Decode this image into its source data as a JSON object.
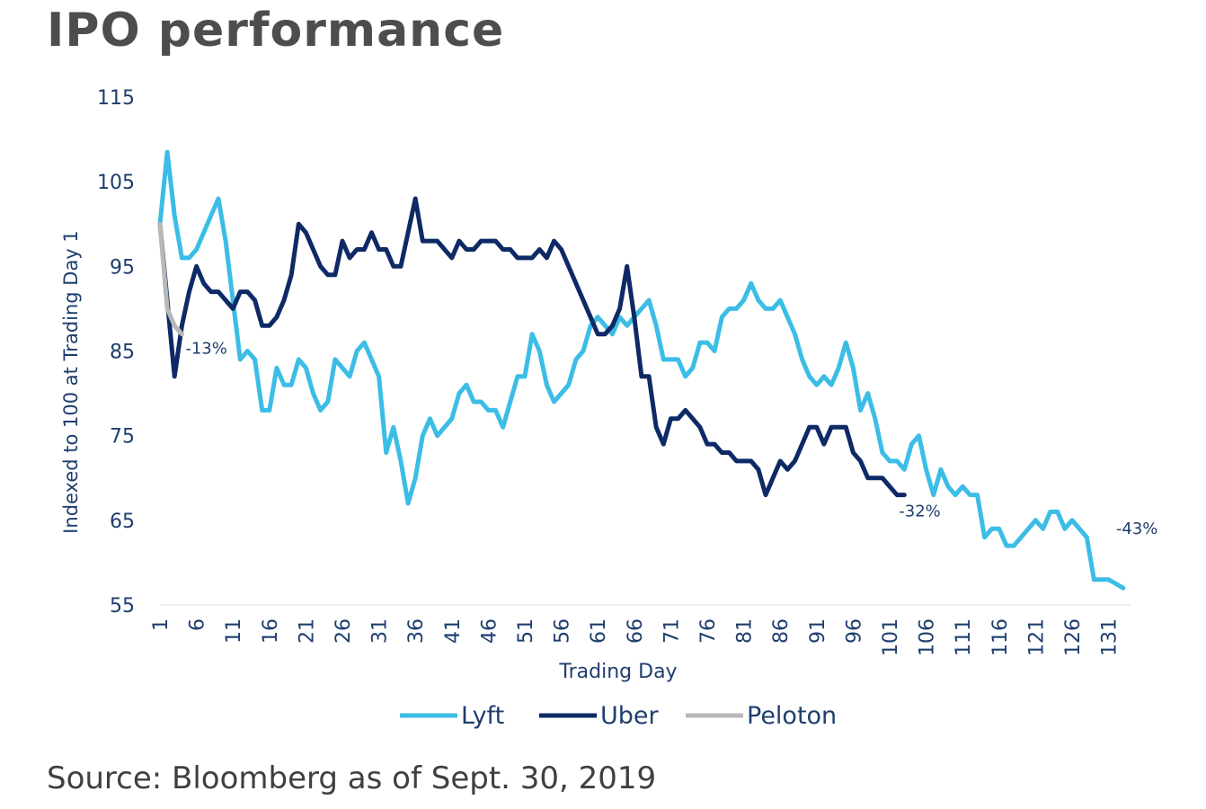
{
  "title": "IPO performance",
  "source": "Source: Bloomberg as of Sept. 30, 2019",
  "chart_data": {
    "type": "line",
    "xlabel": "Trading Day",
    "ylabel": "Indexed to 100 at Trading Day 1",
    "ylim": [
      55,
      115
    ],
    "xlim": [
      1,
      134
    ],
    "yticks": [
      55,
      65,
      75,
      85,
      95,
      105,
      115
    ],
    "xticks": [
      1,
      6,
      11,
      16,
      21,
      26,
      31,
      36,
      41,
      46,
      51,
      56,
      61,
      66,
      71,
      76,
      81,
      86,
      91,
      96,
      101,
      106,
      111,
      116,
      121,
      126,
      131
    ],
    "series": [
      {
        "name": "Lyft",
        "color": "#3bbde6",
        "annotation": "-43%",
        "points": [
          [
            1,
            100
          ],
          [
            2,
            108.5
          ],
          [
            3,
            101
          ],
          [
            4,
            96
          ],
          [
            5,
            96
          ],
          [
            6,
            97
          ],
          [
            7,
            99
          ],
          [
            8,
            101
          ],
          [
            9,
            103
          ],
          [
            10,
            98
          ],
          [
            11,
            91
          ],
          [
            12,
            84
          ],
          [
            13,
            85
          ],
          [
            14,
            84
          ],
          [
            15,
            78
          ],
          [
            16,
            78
          ],
          [
            17,
            83
          ],
          [
            18,
            81
          ],
          [
            19,
            81
          ],
          [
            20,
            84
          ],
          [
            21,
            83
          ],
          [
            22,
            80
          ],
          [
            23,
            78
          ],
          [
            24,
            79
          ],
          [
            25,
            84
          ],
          [
            26,
            83
          ],
          [
            27,
            82
          ],
          [
            28,
            85
          ],
          [
            29,
            86
          ],
          [
            30,
            84
          ],
          [
            31,
            82
          ],
          [
            32,
            73
          ],
          [
            33,
            76
          ],
          [
            34,
            72
          ],
          [
            35,
            67
          ],
          [
            36,
            70
          ],
          [
            37,
            75
          ],
          [
            38,
            77
          ],
          [
            39,
            75
          ],
          [
            40,
            76
          ],
          [
            41,
            77
          ],
          [
            42,
            80
          ],
          [
            43,
            81
          ],
          [
            44,
            79
          ],
          [
            45,
            79
          ],
          [
            46,
            78
          ],
          [
            47,
            78
          ],
          [
            48,
            76
          ],
          [
            49,
            79
          ],
          [
            50,
            82
          ],
          [
            51,
            82
          ],
          [
            52,
            87
          ],
          [
            53,
            85
          ],
          [
            54,
            81
          ],
          [
            55,
            79
          ],
          [
            56,
            80
          ],
          [
            57,
            81
          ],
          [
            58,
            84
          ],
          [
            59,
            85
          ],
          [
            60,
            88
          ],
          [
            61,
            89
          ],
          [
            62,
            88
          ],
          [
            63,
            87
          ],
          [
            64,
            89
          ],
          [
            65,
            88
          ],
          [
            66,
            89
          ],
          [
            67,
            90
          ],
          [
            68,
            91
          ],
          [
            69,
            88
          ],
          [
            70,
            84
          ],
          [
            71,
            84
          ],
          [
            72,
            84
          ],
          [
            73,
            82
          ],
          [
            74,
            83
          ],
          [
            75,
            86
          ],
          [
            76,
            86
          ],
          [
            77,
            85
          ],
          [
            78,
            89
          ],
          [
            79,
            90
          ],
          [
            80,
            90
          ],
          [
            81,
            91
          ],
          [
            82,
            93
          ],
          [
            83,
            91
          ],
          [
            84,
            90
          ],
          [
            85,
            90
          ],
          [
            86,
            91
          ],
          [
            87,
            89
          ],
          [
            88,
            87
          ],
          [
            89,
            84
          ],
          [
            90,
            82
          ],
          [
            91,
            81
          ],
          [
            92,
            82
          ],
          [
            93,
            81
          ],
          [
            94,
            83
          ],
          [
            95,
            86
          ],
          [
            96,
            83
          ],
          [
            97,
            78
          ],
          [
            98,
            80
          ],
          [
            99,
            77
          ],
          [
            100,
            73
          ],
          [
            101,
            72
          ],
          [
            102,
            72
          ],
          [
            103,
            71
          ],
          [
            104,
            74
          ],
          [
            105,
            75
          ],
          [
            106,
            71
          ],
          [
            107,
            68
          ],
          [
            108,
            71
          ],
          [
            109,
            69
          ],
          [
            110,
            68
          ],
          [
            111,
            69
          ],
          [
            112,
            68
          ],
          [
            113,
            68
          ],
          [
            114,
            63
          ],
          [
            115,
            64
          ],
          [
            116,
            64
          ],
          [
            117,
            62
          ],
          [
            118,
            62
          ],
          [
            119,
            63
          ],
          [
            120,
            64
          ],
          [
            121,
            65
          ],
          [
            122,
            64
          ],
          [
            123,
            66
          ],
          [
            124,
            66
          ],
          [
            125,
            64
          ],
          [
            126,
            65
          ],
          [
            127,
            64
          ],
          [
            128,
            63
          ],
          [
            129,
            58
          ],
          [
            130,
            58
          ],
          [
            131,
            58
          ],
          [
            132,
            57.5
          ],
          [
            133,
            57
          ]
        ]
      },
      {
        "name": "Uber",
        "color": "#0e2a66",
        "annotation": "-32%",
        "points": [
          [
            1,
            100
          ],
          [
            2,
            91
          ],
          [
            3,
            82
          ],
          [
            4,
            88
          ],
          [
            5,
            92
          ],
          [
            6,
            95
          ],
          [
            7,
            93
          ],
          [
            8,
            92
          ],
          [
            9,
            92
          ],
          [
            10,
            91
          ],
          [
            11,
            90
          ],
          [
            12,
            92
          ],
          [
            13,
            92
          ],
          [
            14,
            91
          ],
          [
            15,
            88
          ],
          [
            16,
            88
          ],
          [
            17,
            89
          ],
          [
            18,
            91
          ],
          [
            19,
            94
          ],
          [
            20,
            100
          ],
          [
            21,
            99
          ],
          [
            22,
            97
          ],
          [
            23,
            95
          ],
          [
            24,
            94
          ],
          [
            25,
            94
          ],
          [
            26,
            98
          ],
          [
            27,
            96
          ],
          [
            28,
            97
          ],
          [
            29,
            97
          ],
          [
            30,
            99
          ],
          [
            31,
            97
          ],
          [
            32,
            97
          ],
          [
            33,
            95
          ],
          [
            34,
            95
          ],
          [
            35,
            99
          ],
          [
            36,
            103
          ],
          [
            37,
            98
          ],
          [
            38,
            98
          ],
          [
            39,
            98
          ],
          [
            40,
            97
          ],
          [
            41,
            96
          ],
          [
            42,
            98
          ],
          [
            43,
            97
          ],
          [
            44,
            97
          ],
          [
            45,
            98
          ],
          [
            46,
            98
          ],
          [
            47,
            98
          ],
          [
            48,
            97
          ],
          [
            49,
            97
          ],
          [
            50,
            96
          ],
          [
            51,
            96
          ],
          [
            52,
            96
          ],
          [
            53,
            97
          ],
          [
            54,
            96
          ],
          [
            55,
            98
          ],
          [
            56,
            97
          ],
          [
            57,
            95
          ],
          [
            58,
            93
          ],
          [
            59,
            91
          ],
          [
            60,
            89
          ],
          [
            61,
            87
          ],
          [
            62,
            87
          ],
          [
            63,
            88
          ],
          [
            64,
            90
          ],
          [
            65,
            95
          ],
          [
            66,
            89
          ],
          [
            67,
            82
          ],
          [
            68,
            82
          ],
          [
            69,
            76
          ],
          [
            70,
            74
          ],
          [
            71,
            77
          ],
          [
            72,
            77
          ],
          [
            73,
            78
          ],
          [
            74,
            77
          ],
          [
            75,
            76
          ],
          [
            76,
            74
          ],
          [
            77,
            74
          ],
          [
            78,
            73
          ],
          [
            79,
            73
          ],
          [
            80,
            72
          ],
          [
            81,
            72
          ],
          [
            82,
            72
          ],
          [
            83,
            71
          ],
          [
            84,
            68
          ],
          [
            85,
            70
          ],
          [
            86,
            72
          ],
          [
            87,
            71
          ],
          [
            88,
            72
          ],
          [
            89,
            74
          ],
          [
            90,
            76
          ],
          [
            91,
            76
          ],
          [
            92,
            74
          ],
          [
            93,
            76
          ],
          [
            94,
            76
          ],
          [
            95,
            76
          ],
          [
            96,
            73
          ],
          [
            97,
            72
          ],
          [
            98,
            70
          ],
          [
            99,
            70
          ],
          [
            100,
            70
          ],
          [
            101,
            69
          ],
          [
            102,
            68
          ],
          [
            103,
            68
          ]
        ]
      },
      {
        "name": "Peloton",
        "color": "#b8b8b8",
        "annotation": "-13%",
        "points": [
          [
            1,
            100
          ],
          [
            2,
            90
          ],
          [
            3,
            88
          ],
          [
            4,
            87
          ]
        ]
      }
    ]
  }
}
